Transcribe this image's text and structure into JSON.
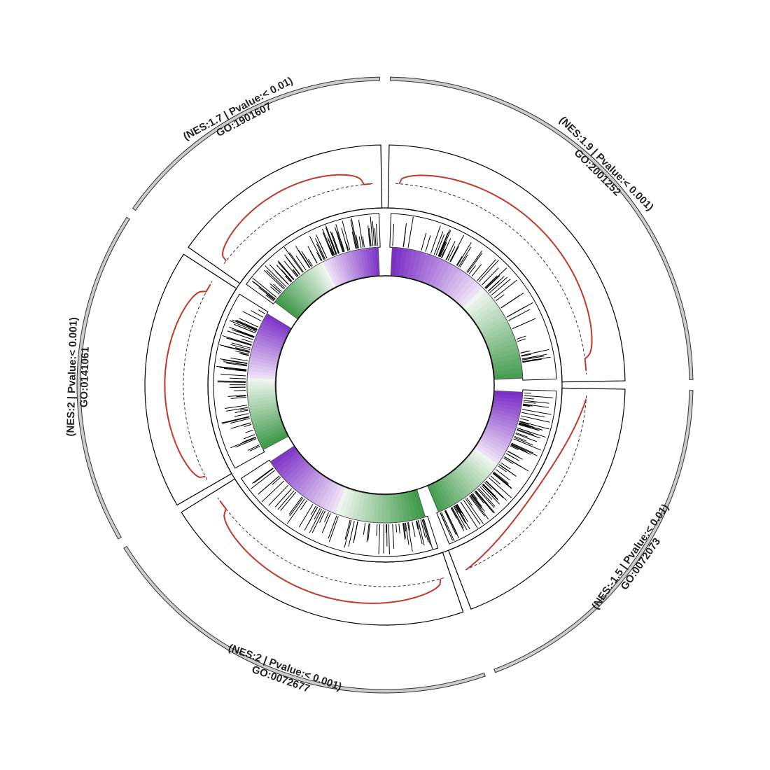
{
  "chart_data": {
    "type": "circular-gsea",
    "colors": {
      "outer_ring": "#cccccc",
      "running_score": "#c0392b",
      "up_rank": "#7b2fc7",
      "down_rank": "#3f9a4a",
      "ring_border": "#000000",
      "background": "#ffffff"
    },
    "segments": [
      {
        "id": "GO:2001252",
        "nes": 1.9,
        "pvalue": "< 0.001",
        "label_line1": "GO:2001252",
        "label_line2": "(NES:1.9 | Pvalue:< 0.001)",
        "rank_gradient": "purple-to-green",
        "score_shape": "positive"
      },
      {
        "id": "GO:0072073",
        "nes": -1.5,
        "pvalue": "< 0.01",
        "label_line1": "GO:0072073",
        "label_line2": "(NES:-1.5 | Pvalue:< 0.01)",
        "rank_gradient": "purple-to-green",
        "score_shape": "negative"
      },
      {
        "id": "GO:0072677",
        "nes": 2,
        "pvalue": "< 0.001",
        "label_line1": "GO:0072677",
        "label_line2": "(NES:2 | Pvalue:< 0.001)",
        "rank_gradient": "green-to-purple",
        "score_shape": "positive"
      },
      {
        "id": "GO:0141061",
        "nes": 2,
        "pvalue": "< 0.001",
        "label_line1": "GO:0141061",
        "label_line2": "(NES:2 | Pvalue:< 0.001)",
        "rank_gradient": "green-to-purple",
        "score_shape": "positive"
      },
      {
        "id": "GO:1901607",
        "nes": 1.7,
        "pvalue": "< 0.01",
        "label_line1": "GO:1901607",
        "label_line2": "(NES:1.7 | Pvalue:< 0.01)",
        "rank_gradient": "green-to-purple",
        "score_shape": "positive"
      }
    ]
  }
}
